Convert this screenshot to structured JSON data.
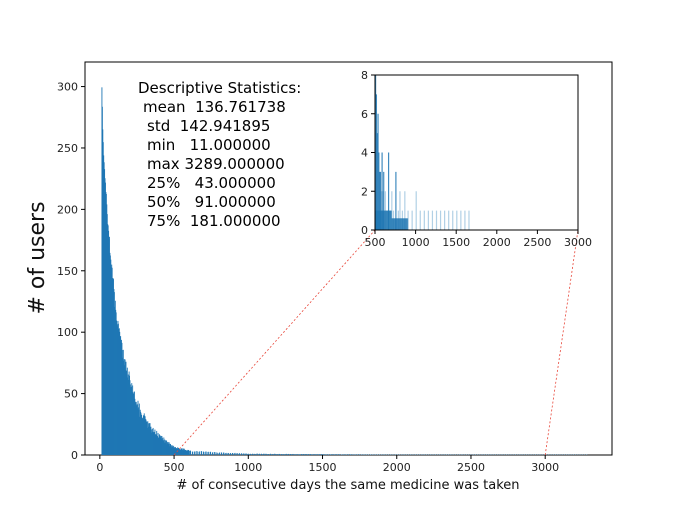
{
  "chart_data": [
    {
      "type": "bar",
      "role": "main-histogram",
      "xlabel": "# of consecutive days the same medicine was taken",
      "ylabel": "# of users",
      "xlim": [
        -100,
        3450
      ],
      "ylim": [
        0,
        320
      ],
      "xticks": [
        0,
        500,
        1000,
        1500,
        2000,
        2500,
        3000
      ],
      "yticks": [
        0,
        50,
        100,
        150,
        200,
        250,
        300
      ],
      "color": "#1f77b4",
      "x": [
        11,
        15,
        20,
        25,
        30,
        40,
        50,
        60,
        70,
        80,
        90,
        100,
        120,
        140,
        160,
        180,
        200,
        250,
        300,
        350,
        400,
        450,
        500,
        600,
        700,
        800,
        1000,
        1500,
        2000,
        3289
      ],
      "values": [
        296,
        275,
        252,
        240,
        232,
        210,
        190,
        178,
        160,
        150,
        138,
        122,
        103,
        92,
        78,
        70,
        60,
        40,
        28,
        20,
        15,
        10,
        6,
        3.5,
        2.5,
        2,
        1,
        0.6,
        0.3,
        0.2
      ],
      "grid": false
    },
    {
      "type": "bar",
      "role": "inset-histogram",
      "xlim": [
        500,
        3000
      ],
      "ylim": [
        0,
        8
      ],
      "xticks": [
        500,
        1000,
        1500,
        2000,
        2500,
        3000
      ],
      "yticks": [
        0,
        2,
        4,
        6,
        8
      ],
      "color": "#1f77b4",
      "x": [
        500,
        510,
        520,
        530,
        540,
        550,
        560,
        570,
        580,
        590,
        600,
        620,
        640,
        660,
        680,
        700,
        720,
        750,
        780,
        800,
        830,
        860,
        900,
        950,
        1000,
        1050,
        1100,
        1150,
        1200,
        1250,
        1300,
        1350,
        1400,
        1450,
        1500,
        1550,
        1600,
        1650
      ],
      "values": [
        8,
        7,
        5,
        6,
        4,
        3,
        3,
        2,
        4,
        2,
        3,
        2,
        1,
        4,
        1,
        2,
        1,
        3,
        1,
        2,
        1,
        2,
        1,
        1,
        2,
        1,
        1,
        1,
        1,
        1,
        1,
        1,
        1,
        1,
        1,
        1,
        1,
        1
      ],
      "grid": false
    }
  ],
  "stats": {
    "title": "Descriptive Statistics:",
    "lines": [
      "mean  136.761738",
      "std  142.941895",
      "min   11.000000",
      "max 3289.000000",
      "25%   43.000000",
      "50%   91.000000",
      "75%  181.000000"
    ]
  },
  "zoom_range": [
    500,
    3000
  ],
  "colors": {
    "bars": "#1f77b4",
    "zoom_lines": "#e8473a",
    "axes": "#000000"
  }
}
